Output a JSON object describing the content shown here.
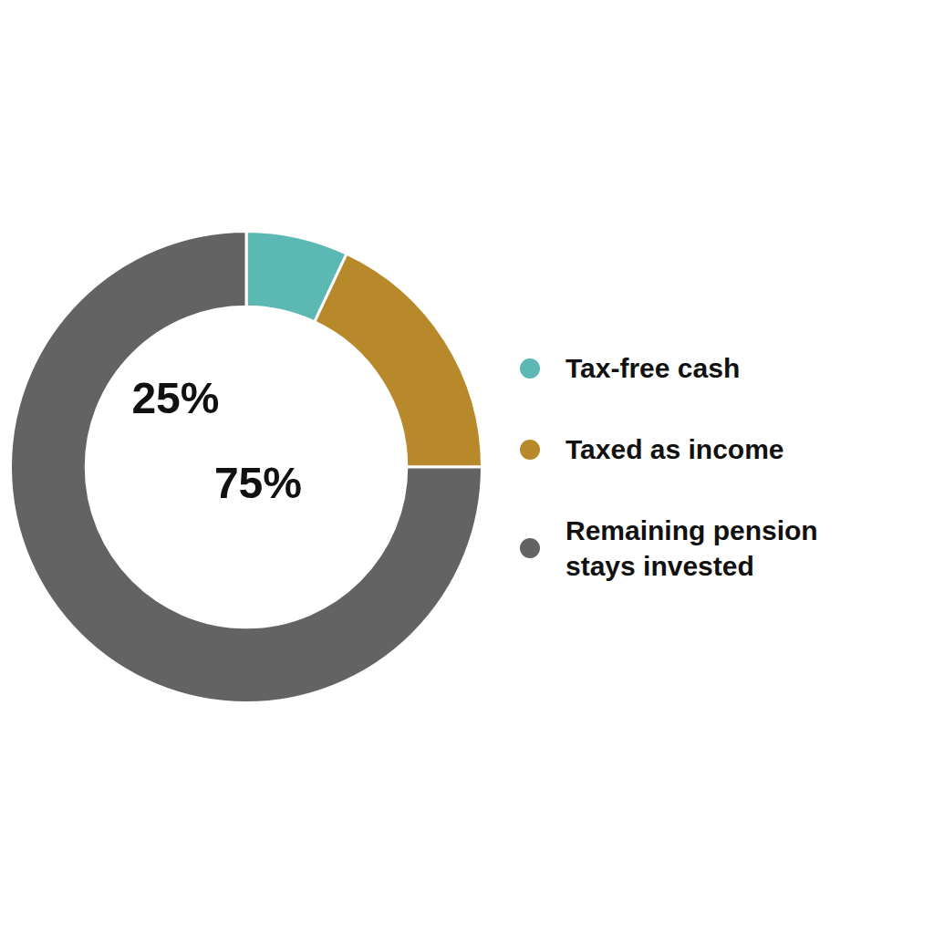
{
  "chart_data": {
    "type": "doughnut",
    "categories": [
      "Tax-free cash",
      "Taxed as income",
      "Remaining pension\nstays invested"
    ],
    "values": [
      7,
      18,
      75
    ],
    "colors": [
      "#5cb8b2",
      "#b8892a",
      "#636363"
    ],
    "annotations": [
      "25%",
      "75%"
    ],
    "legend": "right"
  }
}
